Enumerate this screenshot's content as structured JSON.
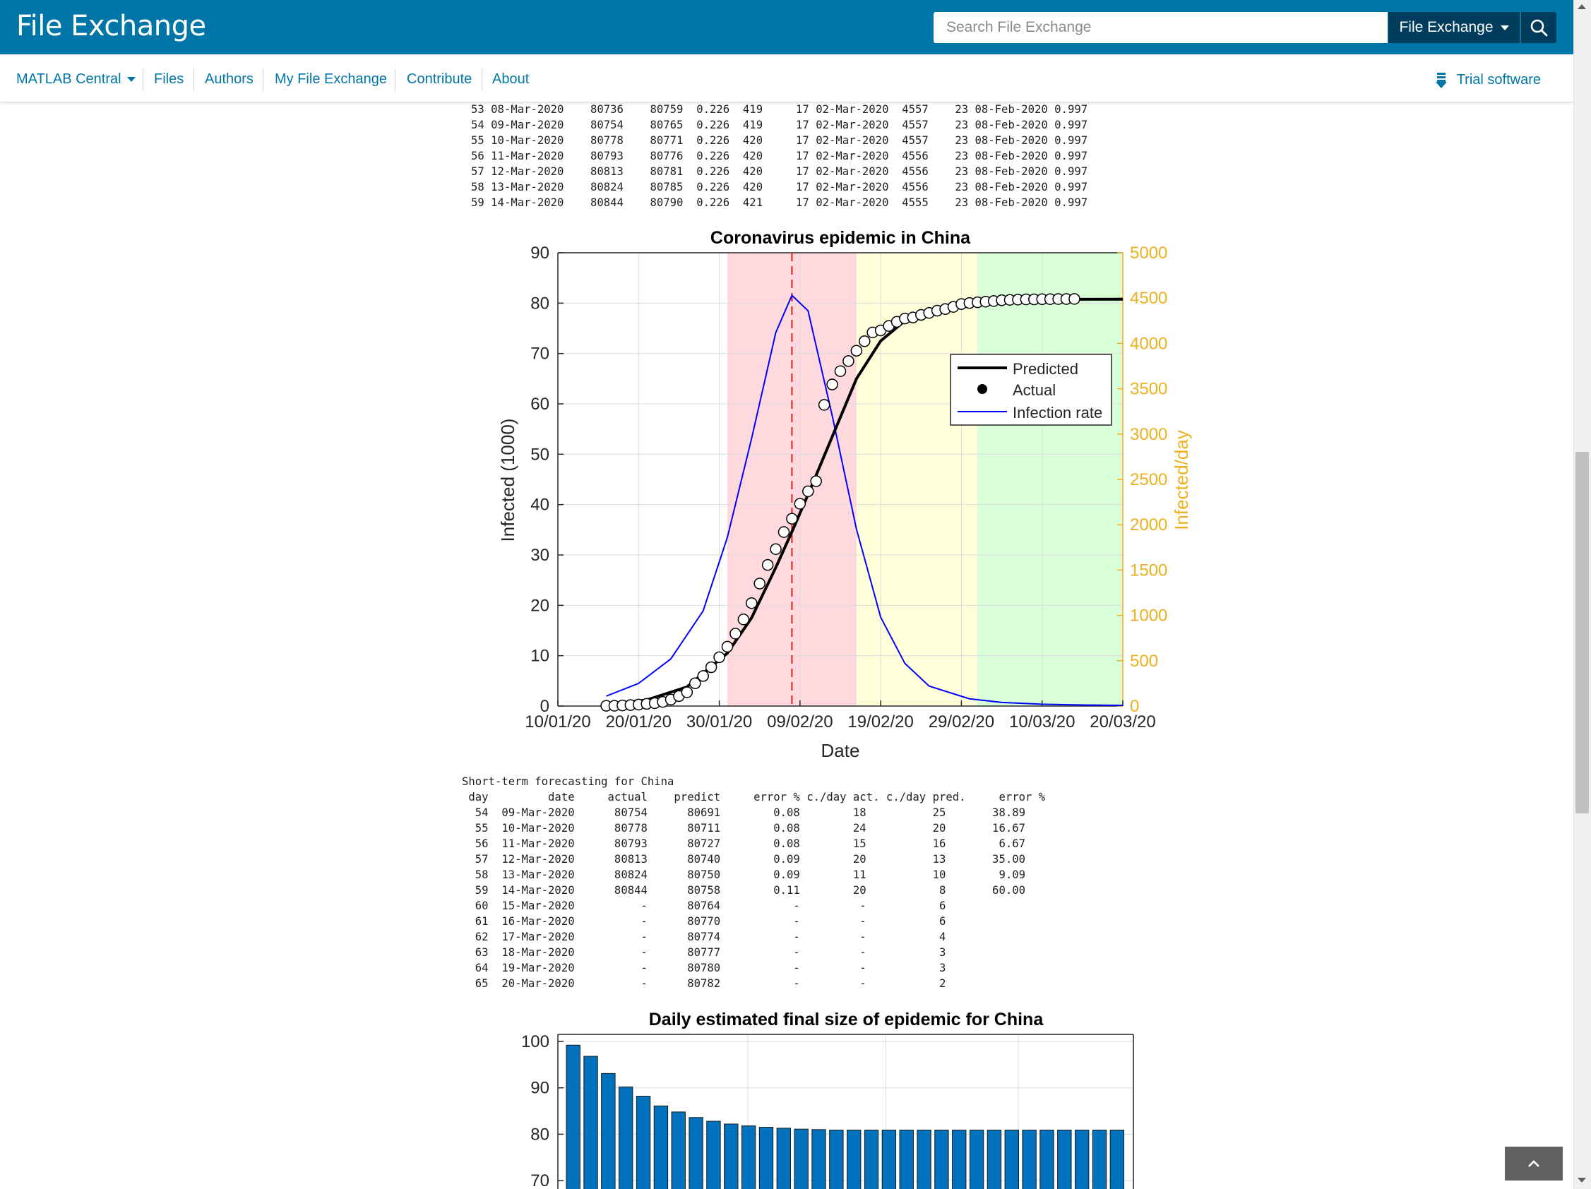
{
  "header": {
    "brand": "File Exchange",
    "search_placeholder": "Search File Exchange",
    "scope_label": "File Exchange"
  },
  "nav": {
    "items": [
      "MATLAB Central",
      "Files",
      "Authors",
      "My File Exchange",
      "Contribute",
      "About"
    ],
    "trial_label": "Trial software"
  },
  "top_table": {
    "rows": [
      "53 08-Mar-2020    80736    80759  0.226  419     17 02-Mar-2020  4557    23 08-Feb-2020 0.997",
      "54 09-Mar-2020    80754    80765  0.226  419     17 02-Mar-2020  4557    23 08-Feb-2020 0.997",
      "55 10-Mar-2020    80778    80771  0.226  420     17 02-Mar-2020  4557    23 08-Feb-2020 0.997",
      "56 11-Mar-2020    80793    80776  0.226  420     17 02-Mar-2020  4556    23 08-Feb-2020 0.997",
      "57 12-Mar-2020    80813    80781  0.226  420     17 02-Mar-2020  4556    23 08-Feb-2020 0.997",
      "58 13-Mar-2020    80824    80785  0.226  420     17 02-Mar-2020  4556    23 08-Feb-2020 0.997",
      "59 14-Mar-2020    80844    80790  0.226  421     17 02-Mar-2020  4555    23 08-Feb-2020 0.997"
    ]
  },
  "forecast_table": {
    "title": "Short-term forecasting for China",
    "header": " day         date     actual    predict     error % c./day act. c./day pred.     error %",
    "rows": [
      "  54  09-Mar-2020      80754      80691        0.08        18          25       38.89",
      "  55  10-Mar-2020      80778      80711        0.08        24          20       16.67",
      "  56  11-Mar-2020      80793      80727        0.08        15          16        6.67",
      "  57  12-Mar-2020      80813      80740        0.09        20          13       35.00",
      "  58  13-Mar-2020      80824      80750        0.09        11          10        9.09",
      "  59  14-Mar-2020      80844      80758        0.11        20           8       60.00",
      "  60  15-Mar-2020          -      80764           -         -           6",
      "  61  16-Mar-2020          -      80770           -         -           6",
      "  62  17-Mar-2020          -      80774           -         -           4",
      "  63  18-Mar-2020          -      80777           -         -           3",
      "  64  19-Mar-2020          -      80780           -         -           3",
      "  65  20-Mar-2020          -      80782           -         -           2"
    ]
  },
  "colors": {
    "brand_blue": "#0076a8",
    "dark_blue": "#003d5c",
    "red_zone": "#ffd9dd",
    "yellow_zone": "#ffffd9",
    "green_zone": "#d9ffd9",
    "rate_line": "#0000ff",
    "right_axis": "#edb120",
    "bar_fill": "#0072bd"
  },
  "chart_data": [
    {
      "type": "line",
      "title": "Coronavirus epidemic in China",
      "xlabel": "Date",
      "ylabel": "Infected (1000)",
      "ylabel_right": "Infected/day",
      "x_ticks": [
        "10/01/20",
        "20/01/20",
        "30/01/20",
        "09/02/20",
        "19/02/20",
        "29/02/20",
        "10/03/20",
        "20/03/20"
      ],
      "xlim": [
        "2020-01-10",
        "2020-03-20"
      ],
      "ylim": [
        0,
        90
      ],
      "y_ticks": [
        0,
        10,
        20,
        30,
        40,
        50,
        60,
        70,
        80,
        90
      ],
      "ylim_right": [
        0,
        5000
      ],
      "y_ticks_right": [
        0,
        500,
        1000,
        1500,
        2000,
        2500,
        3000,
        3500,
        4000,
        4500,
        5000
      ],
      "grid": true,
      "legend": {
        "placement": "right",
        "entries": [
          "Predicted",
          "Actual",
          "Infection rate"
        ]
      },
      "zones": [
        {
          "from": "2020-01-31",
          "to": "2020-02-16",
          "color": "red"
        },
        {
          "from": "2020-02-16",
          "to": "2020-03-02",
          "color": "yellow"
        },
        {
          "from": "2020-03-02",
          "to": "2020-03-20",
          "color": "green"
        }
      ],
      "peak_date": "2020-02-08",
      "series": [
        {
          "name": "Actual",
          "axis": "left",
          "x": [
            "2020-01-16",
            "2020-01-17",
            "2020-01-18",
            "2020-01-19",
            "2020-01-20",
            "2020-01-21",
            "2020-01-22",
            "2020-01-23",
            "2020-01-24",
            "2020-01-25",
            "2020-01-26",
            "2020-01-27",
            "2020-01-28",
            "2020-01-29",
            "2020-01-30",
            "2020-01-31",
            "2020-02-01",
            "2020-02-02",
            "2020-02-03",
            "2020-02-04",
            "2020-02-05",
            "2020-02-06",
            "2020-02-07",
            "2020-02-08",
            "2020-02-09",
            "2020-02-10",
            "2020-02-11",
            "2020-02-12",
            "2020-02-13",
            "2020-02-14",
            "2020-02-15",
            "2020-02-16",
            "2020-02-17",
            "2020-02-18",
            "2020-02-19",
            "2020-02-20",
            "2020-02-21",
            "2020-02-22",
            "2020-02-23",
            "2020-02-24",
            "2020-02-25",
            "2020-02-26",
            "2020-02-27",
            "2020-02-28",
            "2020-02-29",
            "2020-03-01",
            "2020-03-02",
            "2020-03-03",
            "2020-03-04",
            "2020-03-05",
            "2020-03-06",
            "2020-03-07",
            "2020-03-08",
            "2020-03-09",
            "2020-03-10",
            "2020-03-11",
            "2020-03-12",
            "2020-03-13",
            "2020-03-14"
          ],
          "values": [
            0.05,
            0.06,
            0.12,
            0.2,
            0.29,
            0.44,
            0.57,
            0.83,
            1.29,
            1.98,
            2.74,
            4.52,
            5.97,
            7.71,
            9.69,
            11.79,
            14.38,
            17.2,
            20.44,
            24.32,
            28.02,
            31.16,
            34.55,
            37.2,
            40.17,
            42.64,
            44.65,
            59.8,
            63.85,
            66.49,
            68.5,
            70.55,
            72.44,
            74.18,
            74.58,
            75.47,
            76.29,
            76.94,
            77.15,
            77.66,
            78.06,
            78.5,
            78.82,
            79.25,
            79.82,
            80.03,
            80.17,
            80.3,
            80.42,
            80.57,
            80.65,
            80.7,
            80.74,
            80.75,
            80.78,
            80.79,
            80.81,
            80.82,
            80.84
          ]
        },
        {
          "name": "Predicted",
          "axis": "left",
          "x": [
            "2020-01-16",
            "2020-01-21",
            "2020-01-26",
            "2020-01-31",
            "2020-02-03",
            "2020-02-06",
            "2020-02-08",
            "2020-02-10",
            "2020-02-13",
            "2020-02-16",
            "2020-02-19",
            "2020-02-22",
            "2020-02-26",
            "2020-03-01",
            "2020-03-05",
            "2020-03-10",
            "2020-03-15",
            "2020-03-20"
          ],
          "values": [
            0.3,
            1.2,
            3.8,
            10.5,
            17.5,
            27.5,
            34.6,
            42,
            53.5,
            65,
            72.5,
            76.5,
            79,
            80.1,
            80.5,
            80.7,
            80.76,
            80.78
          ]
        },
        {
          "name": "Infection rate",
          "axis": "right",
          "x": [
            "2020-01-16",
            "2020-01-20",
            "2020-01-24",
            "2020-01-28",
            "2020-01-31",
            "2020-02-03",
            "2020-02-06",
            "2020-02-08",
            "2020-02-10",
            "2020-02-13",
            "2020-02-16",
            "2020-02-19",
            "2020-02-22",
            "2020-02-25",
            "2020-03-01",
            "2020-03-05",
            "2020-03-10",
            "2020-03-15",
            "2020-03-20"
          ],
          "values": [
            110,
            250,
            520,
            1050,
            1860,
            2950,
            4120,
            4530,
            4360,
            3200,
            1950,
            980,
            470,
            220,
            80,
            40,
            20,
            12,
            8
          ]
        }
      ]
    },
    {
      "type": "bar",
      "title": "Daily estimated final size of epidemic for China",
      "y_ticks": [
        70,
        80,
        90,
        100
      ],
      "ylim": [
        70,
        100
      ],
      "grid": true,
      "values": [
        99.2,
        96.8,
        93.1,
        90.2,
        88.2,
        86.1,
        84.8,
        83.6,
        82.8,
        82.2,
        81.8,
        81.5,
        81.3,
        81.1,
        81.0,
        80.9,
        80.9,
        80.9,
        80.9,
        80.9,
        80.9,
        80.9,
        80.9,
        80.9,
        80.9,
        80.9,
        80.9,
        80.9,
        80.9,
        80.9,
        80.9,
        80.9
      ]
    }
  ]
}
